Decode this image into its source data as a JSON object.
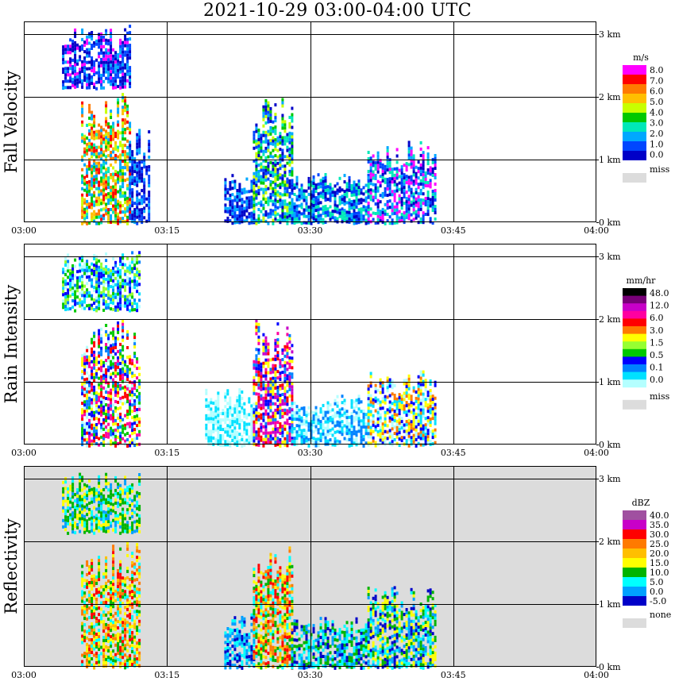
{
  "title": "2021-10-29   03:00-04:00 UTC",
  "chart_data": [
    {
      "type": "heatmap",
      "ylabel": "Fall Velocity",
      "x_ticks": [
        "03:00",
        "03:15",
        "03:30",
        "03:45",
        "04:00"
      ],
      "y_ticks": [
        "0 km",
        "1 km",
        "2 km",
        "3 km"
      ],
      "xlim": [
        "03:00",
        "04:00"
      ],
      "ylim_km": [
        0,
        3.0
      ],
      "grid": true,
      "background": "#ffffff",
      "legend": {
        "unit": "m/s",
        "labels": [
          "8.0",
          "7.0",
          "6.0",
          "5.0",
          "4.0",
          "3.0",
          "2.0",
          "1.0",
          "0.0"
        ],
        "colors": [
          "#ff00ff",
          "#ff0000",
          "#ff7a00",
          "#ffbf00",
          "#c8ff00",
          "#00c800",
          "#00e8b8",
          "#00a8ff",
          "#0046ff",
          "#0000c8"
        ],
        "missing_label": "miss",
        "missing_color": "#dcdcdc"
      },
      "echo_blocks": [
        {
          "t_start": "03:04",
          "t_end": "03:11",
          "h_bottom_km": 2.15,
          "h_top_km": 3.15,
          "palette": [
            8,
            9,
            7,
            9,
            8,
            0
          ]
        },
        {
          "t_start": "03:06",
          "t_end": "03:11",
          "h_bottom_km": 0.0,
          "h_top_km": 2.1,
          "palette": [
            3,
            4,
            5,
            2,
            1,
            6,
            7
          ]
        },
        {
          "t_start": "03:11",
          "t_end": "03:13",
          "h_bottom_km": 0.0,
          "h_top_km": 1.5,
          "palette": [
            8,
            7,
            9
          ]
        },
        {
          "t_start": "03:21",
          "t_end": "03:24",
          "h_bottom_km": 0.0,
          "h_top_km": 0.8,
          "palette": [
            9,
            8,
            7
          ]
        },
        {
          "t_start": "03:24",
          "t_end": "03:28",
          "h_bottom_km": 0.0,
          "h_top_km": 2.0,
          "palette": [
            7,
            6,
            5,
            4,
            8,
            9
          ]
        },
        {
          "t_start": "03:28",
          "t_end": "03:36",
          "h_bottom_km": 0.0,
          "h_top_km": 0.8,
          "palette": [
            9,
            8,
            7,
            6
          ]
        },
        {
          "t_start": "03:36",
          "t_end": "03:43",
          "h_bottom_km": 0.0,
          "h_top_km": 1.3,
          "palette": [
            8,
            7,
            9,
            6,
            0
          ]
        }
      ]
    },
    {
      "type": "heatmap",
      "ylabel": "Rain Intensity",
      "x_ticks": [
        "03:00",
        "03:15",
        "03:30",
        "03:45",
        "04:00"
      ],
      "y_ticks": [
        "0 km",
        "1 km",
        "2 km",
        "3 km"
      ],
      "xlim": [
        "03:00",
        "04:00"
      ],
      "ylim_km": [
        0,
        3.0
      ],
      "grid": true,
      "background": "#ffffff",
      "legend": {
        "unit": "mm/hr",
        "labels": [
          "48.0",
          "12.0",
          "6.0",
          "3.0",
          "1.5",
          "0.5",
          "0.1",
          "0.0"
        ],
        "colors": [
          "#000000",
          "#780078",
          "#c800c8",
          "#ff00a0",
          "#ff0000",
          "#ff7a00",
          "#ffff00",
          "#96ff32",
          "#00c800",
          "#0000ff",
          "#0082ff",
          "#00e1ff",
          "#b4ffff"
        ],
        "missing_label": "miss",
        "missing_color": "#dcdcdc"
      },
      "echo_blocks": [
        {
          "t_start": "03:04",
          "t_end": "03:12",
          "h_bottom_km": 2.15,
          "h_top_km": 3.1,
          "palette": [
            9,
            10,
            11,
            8,
            7,
            12
          ]
        },
        {
          "t_start": "03:06",
          "t_end": "03:12",
          "h_bottom_km": 0.0,
          "h_top_km": 2.0,
          "palette": [
            10,
            9,
            4,
            3,
            6,
            8,
            12
          ]
        },
        {
          "t_start": "03:19",
          "t_end": "03:24",
          "h_bottom_km": 0.0,
          "h_top_km": 0.9,
          "palette": [
            12,
            11
          ]
        },
        {
          "t_start": "03:24",
          "t_end": "03:28",
          "h_bottom_km": 0.0,
          "h_top_km": 2.0,
          "palette": [
            3,
            4,
            2,
            6,
            9,
            10
          ]
        },
        {
          "t_start": "03:28",
          "t_end": "03:36",
          "h_bottom_km": 0.0,
          "h_top_km": 0.8,
          "palette": [
            12,
            11,
            10
          ]
        },
        {
          "t_start": "03:36",
          "t_end": "03:43",
          "h_bottom_km": 0.0,
          "h_top_km": 1.2,
          "palette": [
            11,
            9,
            6,
            5,
            12
          ]
        }
      ]
    },
    {
      "type": "heatmap",
      "ylabel": "Reflectivity",
      "x_ticks": [
        "03:00",
        "03:15",
        "03:30",
        "03:45",
        "04:00"
      ],
      "y_ticks": [
        "0 km",
        "1 km",
        "2 km",
        "3 km"
      ],
      "xlim": [
        "03:00",
        "04:00"
      ],
      "ylim_km": [
        0,
        3.0
      ],
      "grid": true,
      "background": "#dcdcdc",
      "legend": {
        "unit": "dBZ",
        "labels": [
          "40.0",
          "35.0",
          "30.0",
          "25.0",
          "20.0",
          "15.0",
          "10.0",
          "5.0",
          "0.0",
          "-5.0"
        ],
        "colors": [
          "#a050a0",
          "#c800c8",
          "#ff0000",
          "#ff7a00",
          "#ffbf00",
          "#ffff00",
          "#00b400",
          "#00ffff",
          "#00a0ff",
          "#0000c8"
        ],
        "missing_label": "none",
        "missing_color": "#dcdcdc"
      },
      "echo_blocks": [
        {
          "t_start": "03:04",
          "t_end": "03:12",
          "h_bottom_km": 2.15,
          "h_top_km": 3.1,
          "palette": [
            6,
            6,
            7,
            5,
            8
          ]
        },
        {
          "t_start": "03:06",
          "t_end": "03:12",
          "h_bottom_km": 0.0,
          "h_top_km": 2.0,
          "palette": [
            5,
            4,
            3,
            2,
            6,
            7
          ]
        },
        {
          "t_start": "03:21",
          "t_end": "03:24",
          "h_bottom_km": 0.0,
          "h_top_km": 0.9,
          "palette": [
            7,
            8,
            9
          ]
        },
        {
          "t_start": "03:24",
          "t_end": "03:28",
          "h_bottom_km": 0.0,
          "h_top_km": 2.0,
          "palette": [
            4,
            3,
            2,
            5,
            6,
            7
          ]
        },
        {
          "t_start": "03:28",
          "t_end": "03:36",
          "h_bottom_km": 0.0,
          "h_top_km": 0.8,
          "palette": [
            7,
            8,
            9,
            6
          ]
        },
        {
          "t_start": "03:36",
          "t_end": "03:43",
          "h_bottom_km": 0.0,
          "h_top_km": 1.3,
          "palette": [
            7,
            6,
            8,
            5,
            9
          ]
        }
      ]
    }
  ]
}
